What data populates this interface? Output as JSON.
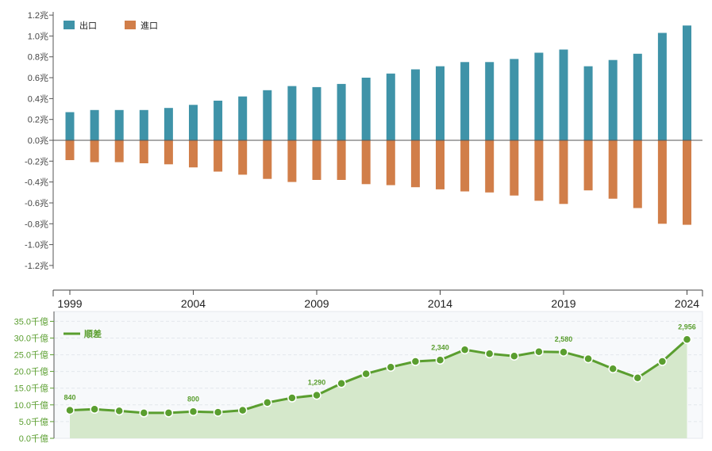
{
  "chart_data": [
    {
      "type": "bar",
      "categories": [
        "1999",
        "2000",
        "2001",
        "2002",
        "2003",
        "2004",
        "2005",
        "2006",
        "2007",
        "2008",
        "2009",
        "2010",
        "2011",
        "2012",
        "2013",
        "2014",
        "2015",
        "2016",
        "2017",
        "2018",
        "2019",
        "2020",
        "2021",
        "2022",
        "2023",
        "2024"
      ],
      "series": [
        {
          "name": "出口",
          "color": "#3f93a8",
          "values": [
            0.27,
            0.29,
            0.29,
            0.29,
            0.31,
            0.34,
            0.38,
            0.42,
            0.48,
            0.52,
            0.51,
            0.54,
            0.6,
            0.64,
            0.68,
            0.71,
            0.75,
            0.75,
            0.78,
            0.84,
            0.87,
            0.71,
            0.77,
            0.83,
            1.03,
            1.1
          ]
        },
        {
          "name": "進口",
          "color": "#d17e49",
          "values": [
            -0.19,
            -0.21,
            -0.21,
            -0.22,
            -0.23,
            -0.26,
            -0.3,
            -0.33,
            -0.37,
            -0.4,
            -0.38,
            -0.38,
            -0.42,
            -0.43,
            -0.45,
            -0.47,
            -0.49,
            -0.5,
            -0.53,
            -0.58,
            -0.61,
            -0.48,
            -0.56,
            -0.65,
            -0.8,
            -0.81
          ]
        }
      ],
      "ylim": [
        -1.2,
        1.2
      ],
      "yticks": [
        "1.2兆",
        "1.0兆",
        "0.8兆",
        "0.6兆",
        "0.4兆",
        "0.2兆",
        "0.0兆",
        "-0.2兆",
        "-0.4兆",
        "-0.6兆",
        "-0.8兆",
        "-1.0兆",
        "-1.2兆"
      ],
      "xtick_labels": [
        "1999",
        "2004",
        "2009",
        "2014",
        "2019",
        "2024"
      ],
      "legend_position": "top-left",
      "grid": false
    },
    {
      "type": "area",
      "x": [
        "1999",
        "2000",
        "2001",
        "2002",
        "2003",
        "2004",
        "2005",
        "2006",
        "2007",
        "2008",
        "2009",
        "2010",
        "2011",
        "2012",
        "2013",
        "2014",
        "2015",
        "2016",
        "2017",
        "2018",
        "2019",
        "2020",
        "2021",
        "2022",
        "2023",
        "2024"
      ],
      "series": [
        {
          "name": "順差",
          "color": "#5a9e2f",
          "values": [
            840,
            870,
            820,
            760,
            760,
            800,
            780,
            840,
            1070,
            1210,
            1290,
            1640,
            1930,
            2130,
            2300,
            2340,
            2650,
            2530,
            2460,
            2590,
            2580,
            2380,
            2080,
            1810,
            2300,
            2956
          ]
        }
      ],
      "data_labels": {
        "0": "840",
        "5": "800",
        "10": "1,290",
        "15": "2,340",
        "20": "2,580",
        "25": "2,956"
      },
      "ylim": [
        0,
        3600
      ],
      "yticks": [
        "35.0千億",
        "30.0千億",
        "25.0千億",
        "20.0千億",
        "15.0千億",
        "10.0千億",
        "5.0千億",
        "0.0千億"
      ],
      "legend_position": "top-left",
      "grid": true
    }
  ],
  "colors": {
    "export": "#3f93a8",
    "import": "#d17e49",
    "balance": "#5a9e2f",
    "balance_fill": "#d5e8cb",
    "panel_bg": "#f7f9fb"
  }
}
